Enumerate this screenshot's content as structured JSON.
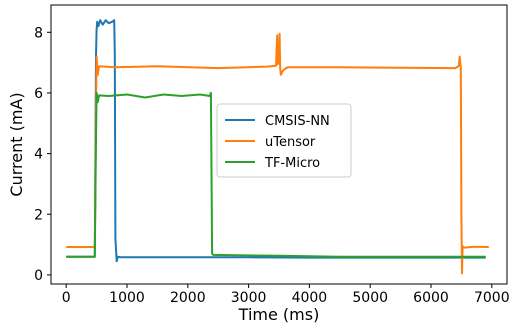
{
  "chart_data": {
    "type": "line",
    "title": "",
    "xlabel": "Time (ms)",
    "ylabel": "Current (mA)",
    "xlim": [
      -250,
      7250
    ],
    "ylim": [
      -0.3,
      8.9
    ],
    "xticks": [
      0,
      1000,
      2000,
      3000,
      4000,
      5000,
      6000,
      7000
    ],
    "yticks": [
      0,
      2,
      4,
      6,
      8
    ],
    "grid": false,
    "legend_position": "center",
    "series": [
      {
        "name": "CMSIS-NN",
        "color": "#1f77b4",
        "x": [
          0,
          470,
          490,
          500,
          510,
          530,
          560,
          600,
          650,
          700,
          760,
          790,
          800,
          810,
          830,
          850,
          900,
          1500,
          2000,
          3000,
          4000,
          5000,
          6000,
          6500,
          6900
        ],
        "y": [
          0.6,
          0.6,
          7.2,
          8.1,
          8.35,
          8.2,
          8.4,
          8.25,
          8.4,
          8.3,
          8.35,
          8.4,
          7.3,
          1.2,
          0.45,
          0.6,
          0.58,
          0.58,
          0.58,
          0.58,
          0.57,
          0.57,
          0.57,
          0.57,
          0.57
        ]
      },
      {
        "name": "uTensor",
        "color": "#ff7f0e",
        "x": [
          0,
          470,
          490,
          500,
          520,
          540,
          800,
          1500,
          2500,
          3300,
          3450,
          3470,
          3480,
          3500,
          3510,
          3520,
          3530,
          3560,
          3600,
          3650,
          4500,
          5500,
          6400,
          6460,
          6470,
          6490,
          6500,
          6510,
          6520,
          6530,
          6550,
          6700,
          6950
        ],
        "y": [
          0.92,
          0.92,
          5.5,
          7.2,
          6.6,
          6.88,
          6.85,
          6.88,
          6.82,
          6.87,
          6.9,
          7.9,
          6.95,
          7.0,
          7.95,
          6.8,
          6.6,
          6.72,
          6.8,
          6.85,
          6.85,
          6.83,
          6.82,
          6.9,
          7.2,
          6.85,
          2.0,
          0.05,
          0.95,
          0.92,
          0.9,
          0.93,
          0.92
        ]
      },
      {
        "name": "TF-Micro",
        "color": "#2ca02c",
        "x": [
          0,
          470,
          490,
          500,
          520,
          540,
          700,
          1000,
          1300,
          1600,
          1900,
          2200,
          2360,
          2380,
          2400,
          2420,
          2800,
          3500,
          4500,
          5500,
          6500,
          6900
        ],
        "y": [
          0.6,
          0.6,
          4.5,
          6.0,
          5.7,
          5.92,
          5.9,
          5.95,
          5.85,
          5.95,
          5.9,
          5.95,
          5.9,
          6.0,
          0.7,
          0.66,
          0.65,
          0.63,
          0.6,
          0.6,
          0.6,
          0.6
        ]
      }
    ]
  }
}
